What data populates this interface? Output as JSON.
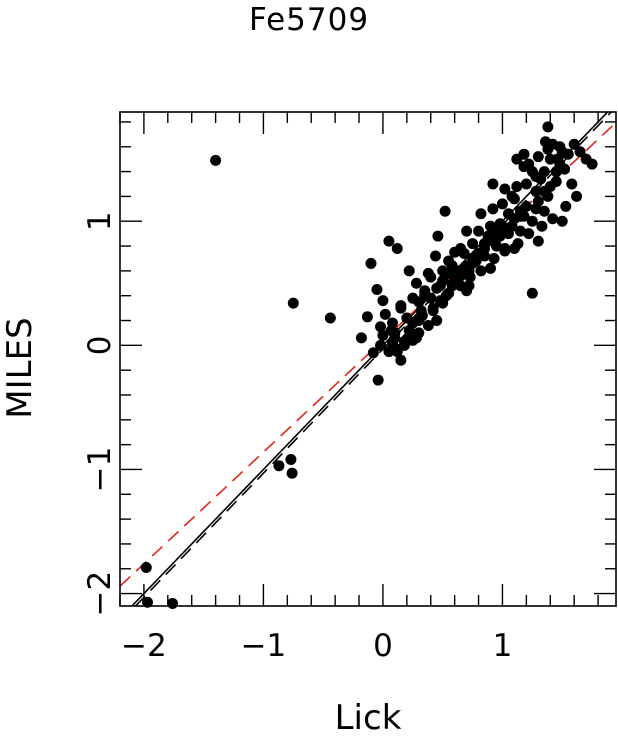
{
  "chart_data": {
    "type": "scatter",
    "title": "Fe5709",
    "xlabel": "Lick",
    "ylabel": "MILES",
    "xlim": [
      -2.2,
      1.95
    ],
    "ylim": [
      -2.1,
      1.88
    ],
    "xticks": [
      -2,
      -1,
      0,
      1
    ],
    "xtick_labels": [
      "−2",
      "−1",
      "0",
      "1"
    ],
    "yticks": [
      -2,
      -1,
      0,
      1
    ],
    "ytick_labels": [
      "−2",
      "−1",
      "0",
      "1"
    ],
    "grid": false,
    "legend": "none",
    "points": {
      "x": [
        -1.97,
        -1.98,
        -1.76,
        -1.4,
        -0.87,
        -0.77,
        -0.76,
        -0.75,
        -0.44,
        -0.18,
        -0.13,
        -0.1,
        -0.08,
        -0.05,
        -0.04,
        -0.02,
        0.02,
        0.05,
        0.07,
        0.08,
        0.1,
        0.12,
        0.15,
        0.18,
        0.2,
        0.22,
        0.25,
        0.28,
        0.3,
        0.32,
        0.35,
        0.38,
        0.4,
        0.42,
        0.44,
        0.46,
        0.48,
        0.5,
        0.52,
        0.55,
        0.58,
        0.6,
        0.62,
        0.65,
        0.68,
        0.7,
        0.72,
        0.75,
        0.78,
        0.8,
        0.82,
        0.85,
        0.88,
        0.9,
        0.92,
        0.95,
        0.98,
        1.0,
        1.02,
        1.05,
        1.08,
        1.1,
        1.12,
        1.15,
        1.18,
        1.2,
        1.22,
        1.25,
        1.28,
        1.3,
        1.32,
        1.35,
        1.38,
        1.4,
        1.42,
        1.45,
        1.48,
        1.5,
        1.55,
        1.6,
        1.65,
        1.7,
        1.75,
        0.05,
        0.1,
        0.15,
        0.2,
        0.25,
        0.3,
        0.35,
        0.4,
        0.45,
        0.5,
        0.55,
        0.6,
        0.65,
        0.7,
        0.75,
        0.8,
        0.85,
        0.9,
        0.95,
        1.0,
        1.05,
        1.1,
        1.15,
        1.2,
        1.25,
        1.3,
        1.35,
        1.4,
        1.45,
        0.0,
        0.3,
        0.5,
        0.7,
        0.9,
        1.1,
        1.3,
        1.5,
        0.12,
        0.18,
        0.28,
        0.38,
        0.48,
        0.58,
        0.68,
        0.78,
        0.88,
        0.98,
        1.08,
        1.18,
        1.28,
        1.38,
        0.22,
        0.42,
        0.62,
        0.82,
        1.02,
        1.22,
        1.42,
        1.62,
        -0.02,
        0.08,
        0.33,
        0.53,
        0.73,
        0.93,
        1.13,
        1.33,
        1.53,
        0.15,
        0.35,
        0.55,
        0.75,
        0.95,
        1.15,
        1.35,
        1.12,
        1.25,
        1.38,
        1.02,
        0.92,
        1.18,
        1.28,
        1.46,
        1.52,
        1.58,
        0.45,
        0.65,
        0.85,
        0.25,
        0.1,
        0.0,
        1.48,
        1.36,
        0.72,
        0.62
      ],
      "y": [
        -2.07,
        -1.79,
        -2.08,
        1.49,
        -0.97,
        -0.92,
        -1.03,
        0.34,
        0.22,
        0.06,
        0.23,
        0.66,
        -0.06,
        0.45,
        -0.28,
        0.15,
        0.25,
        0.84,
        0.12,
        0.02,
        0.06,
        0.78,
        0.32,
        0.03,
        0.22,
        0.6,
        0.18,
        0.5,
        0.35,
        0.28,
        0.4,
        0.58,
        0.55,
        0.3,
        0.72,
        0.88,
        0.48,
        0.6,
        1.08,
        0.68,
        0.64,
        0.75,
        0.5,
        0.78,
        0.74,
        0.92,
        0.6,
        0.82,
        0.68,
        0.92,
        1.06,
        0.72,
        0.88,
        0.96,
        1.3,
        0.86,
        0.98,
        1.14,
        0.76,
        1.06,
        1.2,
        1.18,
        1.28,
        1.04,
        1.44,
        1.3,
        1.46,
        0.42,
        1.24,
        1.52,
        1.34,
        1.4,
        1.76,
        1.5,
        1.62,
        1.4,
        1.46,
        1.56,
        1.54,
        1.62,
        1.56,
        1.5,
        1.46,
        -0.05,
        0.1,
        -0.12,
        0.05,
        0.38,
        0.2,
        0.42,
        0.38,
        0.46,
        0.52,
        0.42,
        0.54,
        0.56,
        0.64,
        0.66,
        0.74,
        0.78,
        0.88,
        0.92,
        0.96,
        0.9,
        1.02,
        1.08,
        1.12,
        1.0,
        1.16,
        1.24,
        1.28,
        1.32,
        0.36,
        0.1,
        0.34,
        0.44,
        0.62,
        0.78,
        0.84,
        1.0,
        -0.05,
        0.0,
        0.06,
        0.16,
        0.36,
        0.48,
        0.62,
        0.72,
        0.84,
        0.88,
        0.96,
        1.04,
        1.1,
        1.2,
        0.12,
        0.28,
        0.52,
        0.6,
        0.78,
        0.9,
        1.02,
        1.2,
        0.0,
        0.18,
        0.24,
        0.4,
        0.55,
        0.7,
        0.82,
        0.96,
        1.12,
        0.3,
        0.44,
        0.58,
        0.7,
        0.8,
        0.92,
        1.08,
        1.5,
        1.4,
        1.58,
        1.26,
        1.1,
        1.54,
        1.36,
        1.5,
        1.42,
        1.3,
        0.2,
        0.48,
        0.82,
        0.04,
        -0.02,
        0.08,
        1.6,
        1.64,
        0.48,
        0.6
      ]
    },
    "lines": [
      {
        "style": "solid",
        "color": "#000000",
        "slope": 1.0,
        "intercept": 0.0
      },
      {
        "style": "dashed",
        "color": "#000000",
        "slope": 1.0,
        "intercept": -0.03
      },
      {
        "style": "dashed",
        "color": "#e4231b",
        "slope": 0.9,
        "intercept": 0.04
      }
    ]
  }
}
